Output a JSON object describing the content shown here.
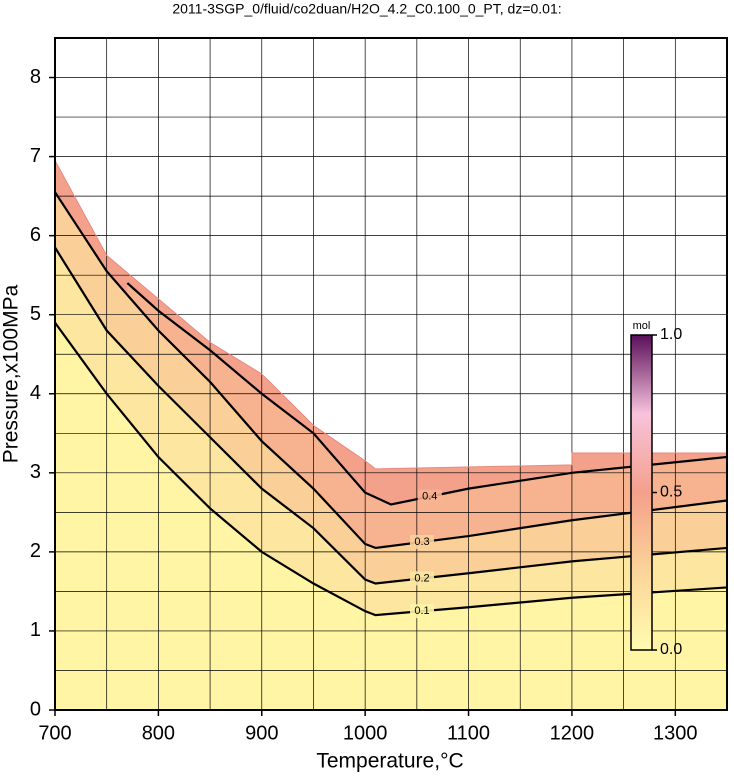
{
  "chart_data": {
    "type": "contour",
    "title": "2011-3SGP_0/fluid/co2duan/H2O_4.2_C0.100_0_PT, dz=0.01:",
    "xlabel": "Temperature,°C",
    "ylabel": "Pressure,x100MPa",
    "xlim": [
      700,
      1350
    ],
    "ylim": [
      0,
      8.5
    ],
    "xticks": [
      700,
      800,
      900,
      1000,
      1100,
      1200,
      1300
    ],
    "yticks": [
      0,
      1,
      2,
      3,
      4,
      5,
      6,
      7,
      8
    ],
    "xgrid": [
      700,
      750,
      800,
      850,
      900,
      950,
      1000,
      1050,
      1100,
      1150,
      1200,
      1250,
      1300,
      1350
    ],
    "ygrid": [
      0,
      0.5,
      1,
      1.5,
      2,
      2.5,
      3,
      3.5,
      4,
      4.5,
      5,
      5.5,
      6,
      6.5,
      7,
      7.5,
      8
    ],
    "grid": true,
    "domain": {
      "color": "#f4a18c",
      "x": [
        700,
        750,
        800,
        850,
        900,
        950,
        1000,
        1010,
        1200,
        1200,
        1350
      ],
      "y": [
        6.95,
        5.75,
        5.2,
        4.65,
        4.25,
        3.6,
        3.15,
        3.05,
        3.1,
        3.25,
        3.25
      ]
    },
    "series": [
      {
        "name": "0.1",
        "color": "#fff5a5",
        "x": [
          700,
          750,
          800,
          850,
          900,
          950,
          1000,
          1010,
          1100,
          1200,
          1350
        ],
        "y": [
          4.9,
          4.0,
          3.2,
          2.55,
          2.0,
          1.6,
          1.25,
          1.2,
          1.3,
          1.42,
          1.55
        ]
      },
      {
        "name": "0.2",
        "color": "#fde6a0",
        "x": [
          700,
          750,
          800,
          850,
          900,
          950,
          1000,
          1010,
          1100,
          1200,
          1350
        ],
        "y": [
          5.85,
          4.8,
          4.1,
          3.45,
          2.8,
          2.3,
          1.65,
          1.6,
          1.73,
          1.88,
          2.05
        ]
      },
      {
        "name": "0.3",
        "color": "#fbcf98",
        "x": [
          700,
          750,
          800,
          850,
          900,
          950,
          1000,
          1010,
          1100,
          1200,
          1350
        ],
        "y": [
          6.55,
          5.55,
          4.8,
          4.15,
          3.4,
          2.8,
          2.1,
          2.05,
          2.2,
          2.4,
          2.65
        ]
      },
      {
        "name": "0.4",
        "color": "#f7b390",
        "x": [
          770,
          800,
          850,
          900,
          950,
          1000,
          1025,
          1100,
          1200,
          1350
        ],
        "y": [
          5.4,
          5.05,
          4.55,
          4.0,
          3.5,
          2.75,
          2.6,
          2.8,
          3.0,
          3.2
        ]
      }
    ],
    "colorbar": {
      "label": "mol",
      "lim": [
        0,
        1
      ],
      "ticks": [
        {
          "value": 0,
          "label": "0.0"
        },
        {
          "value": 0.5,
          "label": "0.5"
        },
        {
          "value": 1,
          "label": "1.0"
        }
      ],
      "colors": [
        "#fffcb0",
        "#fbd49a",
        "#f4a08c",
        "#f7c3dc",
        "#5a0f5a"
      ]
    }
  }
}
